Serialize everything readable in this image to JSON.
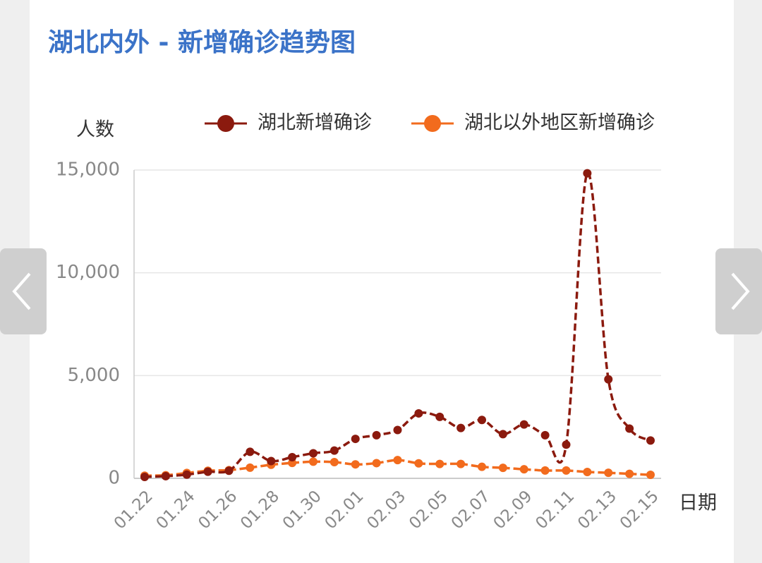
{
  "chart_data": {
    "type": "line",
    "title": "湖北内外 - 新增确诊趋势图",
    "y_label": "人数",
    "x_label": "日期",
    "categories": [
      "01.22",
      null,
      "01.24",
      null,
      "01.26",
      null,
      "01.28",
      null,
      "01.30",
      null,
      "02.01",
      null,
      "02.03",
      null,
      "02.05",
      null,
      "02.07",
      null,
      "02.09",
      null,
      "02.11",
      null,
      "02.13",
      null,
      "02.15"
    ],
    "series": [
      {
        "name": "湖北新增确诊",
        "color": "#8b1a0e",
        "values": [
          70,
          105,
          180,
          320,
          370,
          1290,
          840,
          1030,
          1220,
          1350,
          1920,
          2100,
          2350,
          3160,
          2990,
          2450,
          2840,
          2150,
          2620,
          2100,
          1640,
          14840,
          4820,
          2420,
          1840
        ]
      },
      {
        "name": "湖北以外地区新增确诊",
        "color": "#f26b1d",
        "values": [
          130,
          150,
          260,
          370,
          400,
          520,
          660,
          750,
          810,
          790,
          680,
          740,
          890,
          730,
          700,
          700,
          560,
          510,
          440,
          380,
          380,
          310,
          270,
          220,
          170
        ]
      }
    ],
    "ylim": [
      0,
      15000
    ],
    "yticks": [
      0,
      {
        "value": 5000,
        "label": "5,000"
      },
      {
        "value": 10000,
        "label": "10,000"
      },
      {
        "value": 15000,
        "label": "15,000"
      }
    ],
    "grid": true
  }
}
